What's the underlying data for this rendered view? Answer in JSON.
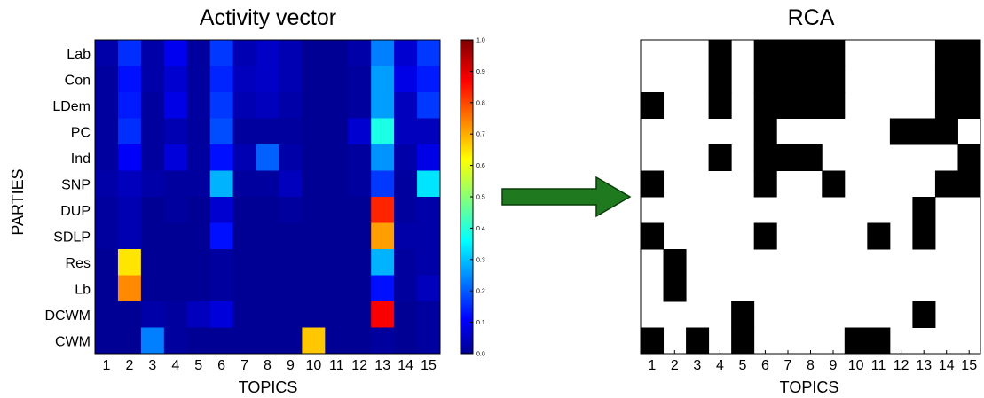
{
  "chart_data": [
    {
      "type": "heatmap",
      "title": "Activity vector",
      "xlabel": "TOPICS",
      "ylabel": "PARTIES",
      "x": [
        "1",
        "2",
        "3",
        "4",
        "5",
        "6",
        "7",
        "8",
        "9",
        "10",
        "11",
        "12",
        "13",
        "14",
        "15"
      ],
      "y": [
        "Lab",
        "Con",
        "LDem",
        "PC",
        "Ind",
        "SNP",
        "DUP",
        "SDLP",
        "Res",
        "Lb",
        "DCWM",
        "CWM"
      ],
      "values": [
        [
          0.04,
          0.17,
          0.04,
          0.11,
          0.03,
          0.18,
          0.05,
          0.07,
          0.05,
          0.02,
          0.02,
          0.04,
          0.25,
          0.08,
          0.18
        ],
        [
          0.03,
          0.14,
          0.04,
          0.08,
          0.03,
          0.16,
          0.06,
          0.07,
          0.05,
          0.02,
          0.02,
          0.03,
          0.28,
          0.1,
          0.15
        ],
        [
          0.03,
          0.15,
          0.03,
          0.1,
          0.03,
          0.18,
          0.05,
          0.06,
          0.04,
          0.02,
          0.02,
          0.03,
          0.28,
          0.06,
          0.18
        ],
        [
          0.03,
          0.17,
          0.03,
          0.05,
          0.03,
          0.2,
          0.03,
          0.03,
          0.03,
          0.02,
          0.02,
          0.08,
          0.4,
          0.06,
          0.06
        ],
        [
          0.03,
          0.12,
          0.03,
          0.09,
          0.03,
          0.14,
          0.05,
          0.22,
          0.04,
          0.02,
          0.02,
          0.03,
          0.27,
          0.04,
          0.1
        ],
        [
          0.04,
          0.06,
          0.04,
          0.03,
          0.03,
          0.3,
          0.03,
          0.03,
          0.06,
          0.02,
          0.02,
          0.03,
          0.18,
          0.03,
          0.35
        ],
        [
          0.03,
          0.05,
          0.02,
          0.03,
          0.02,
          0.08,
          0.02,
          0.02,
          0.03,
          0.02,
          0.02,
          0.02,
          0.84,
          0.03,
          0.04
        ],
        [
          0.03,
          0.05,
          0.02,
          0.02,
          0.02,
          0.14,
          0.02,
          0.02,
          0.02,
          0.02,
          0.02,
          0.02,
          0.72,
          0.04,
          0.04
        ],
        [
          0.02,
          0.65,
          0.02,
          0.02,
          0.02,
          0.03,
          0.02,
          0.02,
          0.02,
          0.02,
          0.02,
          0.02,
          0.3,
          0.03,
          0.04
        ],
        [
          0.02,
          0.74,
          0.02,
          0.02,
          0.02,
          0.03,
          0.02,
          0.02,
          0.02,
          0.02,
          0.02,
          0.02,
          0.14,
          0.03,
          0.06
        ],
        [
          0.02,
          0.02,
          0.04,
          0.03,
          0.06,
          0.09,
          0.02,
          0.02,
          0.02,
          0.02,
          0.02,
          0.02,
          0.88,
          0.02,
          0.03
        ],
        [
          0.02,
          0.02,
          0.25,
          0.03,
          0.02,
          0.02,
          0.02,
          0.02,
          0.02,
          0.68,
          0.02,
          0.02,
          0.03,
          0.02,
          0.03
        ]
      ],
      "colorbar": {
        "range": [
          0.0,
          1.0
        ],
        "ticks": [
          "0.0",
          "0.1",
          "0.2",
          "0.3",
          "0.4",
          "0.5",
          "0.6",
          "0.7",
          "0.8",
          "0.9",
          "1.0"
        ],
        "colormap": "jet"
      }
    },
    {
      "type": "heatmap",
      "title": "RCA",
      "xlabel": "TOPICS",
      "x": [
        "1",
        "2",
        "3",
        "4",
        "5",
        "6",
        "7",
        "8",
        "9",
        "10",
        "11",
        "12",
        "13",
        "14",
        "15"
      ],
      "values": [
        [
          0,
          0,
          0,
          1,
          0,
          1,
          1,
          1,
          1,
          0,
          0,
          0,
          0,
          1,
          1
        ],
        [
          0,
          0,
          0,
          1,
          0,
          1,
          1,
          1,
          1,
          0,
          0,
          0,
          0,
          1,
          1
        ],
        [
          1,
          0,
          0,
          1,
          0,
          1,
          1,
          1,
          1,
          0,
          0,
          0,
          0,
          1,
          1
        ],
        [
          0,
          0,
          0,
          0,
          0,
          1,
          0,
          0,
          0,
          0,
          0,
          1,
          1,
          1,
          0
        ],
        [
          0,
          0,
          0,
          1,
          0,
          1,
          1,
          1,
          0,
          0,
          0,
          0,
          0,
          0,
          1
        ],
        [
          1,
          0,
          0,
          0,
          0,
          1,
          0,
          0,
          1,
          0,
          0,
          0,
          0,
          1,
          1
        ],
        [
          0,
          0,
          0,
          0,
          0,
          0,
          0,
          0,
          0,
          0,
          0,
          0,
          1,
          0,
          0
        ],
        [
          1,
          0,
          0,
          0,
          0,
          1,
          0,
          0,
          0,
          0,
          1,
          0,
          1,
          0,
          0
        ],
        [
          0,
          1,
          0,
          0,
          0,
          0,
          0,
          0,
          0,
          0,
          0,
          0,
          0,
          0,
          0
        ],
        [
          0,
          1,
          0,
          0,
          0,
          0,
          0,
          0,
          0,
          0,
          0,
          0,
          0,
          0,
          0
        ],
        [
          0,
          0,
          0,
          0,
          1,
          0,
          0,
          0,
          0,
          0,
          0,
          0,
          1,
          0,
          0
        ],
        [
          1,
          0,
          1,
          0,
          1,
          0,
          0,
          0,
          0,
          1,
          1,
          0,
          0,
          0,
          0
        ]
      ],
      "colors": {
        "one": "#000000",
        "zero": "#ffffff"
      }
    }
  ],
  "arrow": {
    "color": "#1f7a1f",
    "outline": "#0a3d0a"
  }
}
